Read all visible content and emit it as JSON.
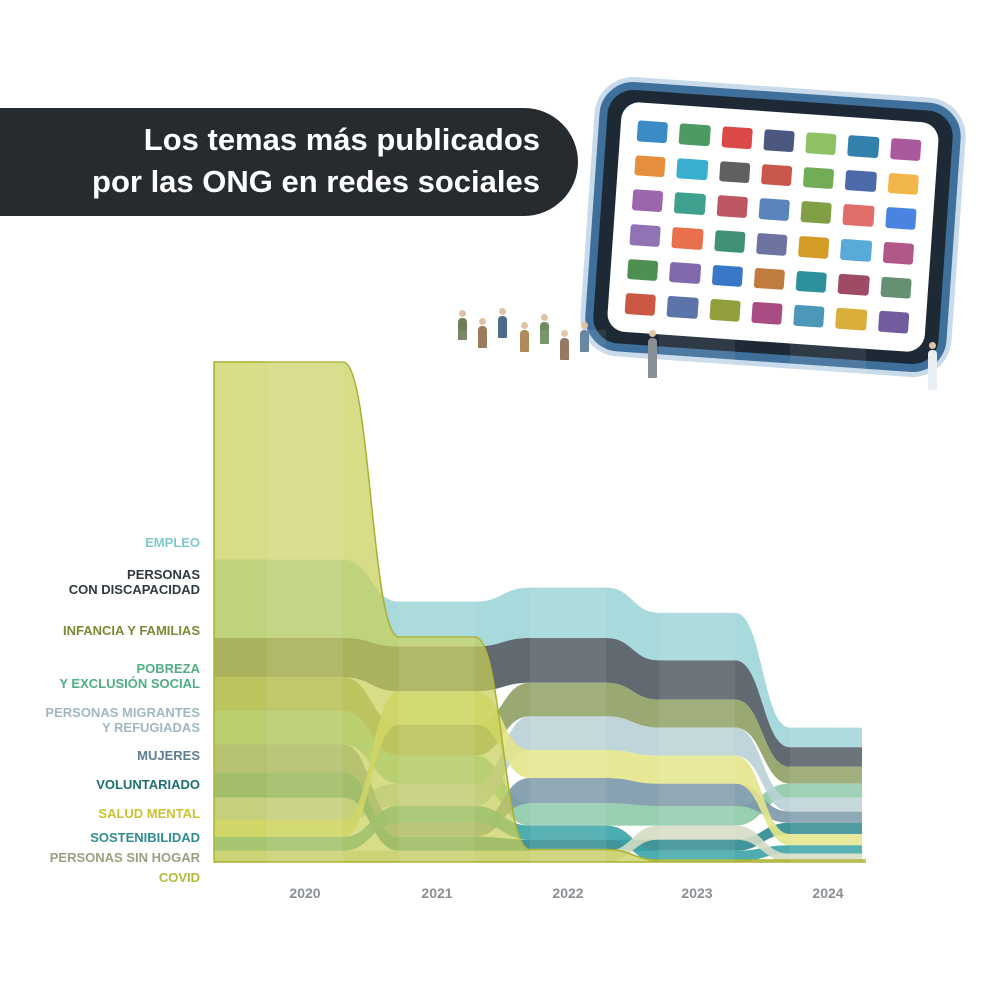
{
  "title_lines": [
    "Los temas más publicados",
    "por las ONG en redes sociales"
  ],
  "chart_data": {
    "type": "area",
    "x": [
      "2020",
      "2021",
      "2022",
      "2023",
      "2024"
    ],
    "series": [
      {
        "name": "EMPLEO",
        "label_lines": [
          "EMPLEO"
        ],
        "color": "#9fd5d8",
        "values": [
          28,
          16,
          18,
          17,
          7
        ]
      },
      {
        "name": "PERSONAS CON DISCAPACIDAD",
        "label_lines": [
          "PERSONAS",
          "CON DISCAPACIDAD"
        ],
        "color": "#4f5a61",
        "values": [
          14,
          16,
          16,
          14,
          7
        ]
      },
      {
        "name": "INFANCIA Y FAMILIAS",
        "label_lines": [
          "INFANCIA Y FAMILIAS"
        ],
        "color": "#8fa063",
        "values": [
          12,
          11,
          12,
          10,
          6
        ]
      },
      {
        "name": "POBREZA Y EXCLUSIÓN SOCIAL",
        "label_lines": [
          "POBREZA",
          "Y EXCLUSIÓN SOCIAL"
        ],
        "color": "#8dcaa9",
        "values": [
          12,
          10,
          8,
          7,
          5
        ]
      },
      {
        "name": "PERSONAS MIGRANTES Y REFUGIADAS",
        "label_lines": [
          "PERSONAS MIGRANTES",
          "Y REFUGIADAS"
        ],
        "color": "#b9d0d6",
        "values": [
          8,
          8,
          12,
          10,
          5
        ]
      },
      {
        "name": "MUJERES",
        "label_lines": [
          "MUJERES"
        ],
        "color": "#7b98a8",
        "values": [
          10,
          5,
          9,
          8,
          4
        ]
      },
      {
        "name": "VOLUNTARIADO",
        "label_lines": [
          "VOLUNTARIADO"
        ],
        "color": "#2c8a8f",
        "values": [
          9,
          5,
          4,
          4,
          4
        ]
      },
      {
        "name": "SALUD MENTAL",
        "label_lines": [
          "SALUD MENTAL"
        ],
        "color": "#e3e58a",
        "values": [
          6,
          12,
          10,
          10,
          4
        ]
      },
      {
        "name": "SOSTENIBILIDAD",
        "label_lines": [
          "SOSTENIBILIDAD"
        ],
        "color": "#3aa3a6",
        "values": [
          5,
          6,
          5,
          4,
          3
        ]
      },
      {
        "name": "PERSONAS SIN HOGAR",
        "label_lines": [
          "PERSONAS SIN HOGAR"
        ],
        "color": "#d5dcc3",
        "values": [
          4,
          4,
          4,
          5,
          3
        ]
      },
      {
        "name": "COVID",
        "label_lines": [
          "COVID"
        ],
        "color": "#c7ce57",
        "values": [
          40,
          18,
          1,
          0,
          0
        ]
      }
    ],
    "legend": "left",
    "grid": false
  },
  "phone_logo_colors": [
    "#1a75bc",
    "#2c8a46",
    "#d62828",
    "#2b3a67",
    "#7ab648",
    "#0e6b9e",
    "#9b3c8c",
    "#e07b1a",
    "#16a0c6",
    "#444444",
    "#c0392b",
    "#5a9e3a",
    "#2d4f9b",
    "#f0a92a",
    "#8c4a9e",
    "#1d8f7a",
    "#b23a48",
    "#3d6fb0",
    "#6b8e23",
    "#d9534f",
    "#2a6fdb",
    "#7b5aa6",
    "#e4572e",
    "#1e7f5c",
    "#555b8f",
    "#cc8a00",
    "#3b9bd1",
    "#a23b72",
    "#2f7d32",
    "#6c4f9c",
    "#1560bd",
    "#b5651d",
    "#0a7d8c",
    "#8e2c48",
    "#4a7c59",
    "#c23b22",
    "#3e5c9a",
    "#7f8c1a",
    "#9b2d6f",
    "#2e86ab",
    "#d4a017",
    "#5b3f8c"
  ]
}
